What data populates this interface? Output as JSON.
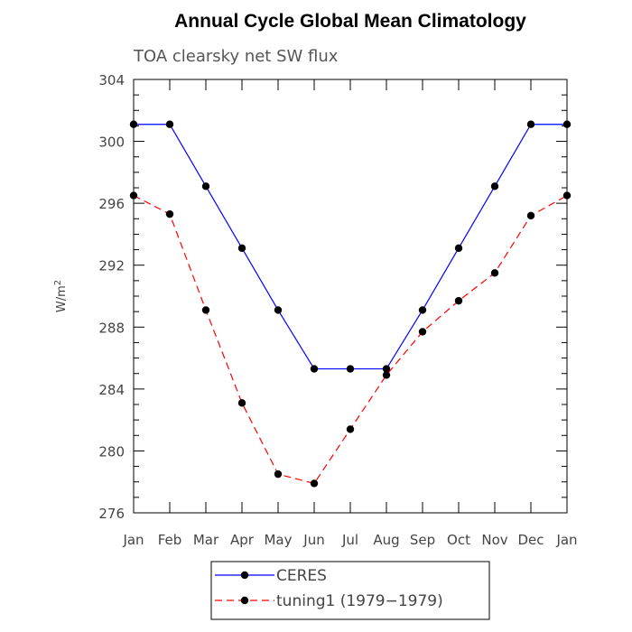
{
  "chart_data": {
    "type": "line",
    "title": "Annual Cycle Global Mean Climatology",
    "subtitle": "TOA clearsky net SW flux",
    "ylabel": "W/m",
    "ylabel_sup": "2",
    "categories": [
      "Jan",
      "Feb",
      "Mar",
      "Apr",
      "May",
      "Jun",
      "Jul",
      "Aug",
      "Sep",
      "Oct",
      "Nov",
      "Dec",
      "Jan"
    ],
    "ylim": [
      276,
      304
    ],
    "yticks": [
      276,
      280,
      284,
      288,
      292,
      296,
      300,
      304
    ],
    "yticks_minor_step": 1,
    "legend_position": "bottom",
    "series": [
      {
        "name": "CERES",
        "color": "#0000ff",
        "dash": "solid",
        "marker": "circle",
        "values": [
          301.1,
          301.1,
          297.1,
          293.1,
          289.1,
          285.3,
          285.3,
          285.3,
          289.1,
          293.1,
          297.1,
          301.1,
          301.1
        ]
      },
      {
        "name": "tuning1 (1979−1979)",
        "color": "#ff0000",
        "dash": "dashed",
        "marker": "circle",
        "values": [
          296.5,
          295.3,
          289.1,
          283.1,
          278.5,
          277.9,
          281.4,
          284.9,
          287.7,
          289.7,
          291.5,
          295.2,
          296.5
        ]
      }
    ]
  }
}
